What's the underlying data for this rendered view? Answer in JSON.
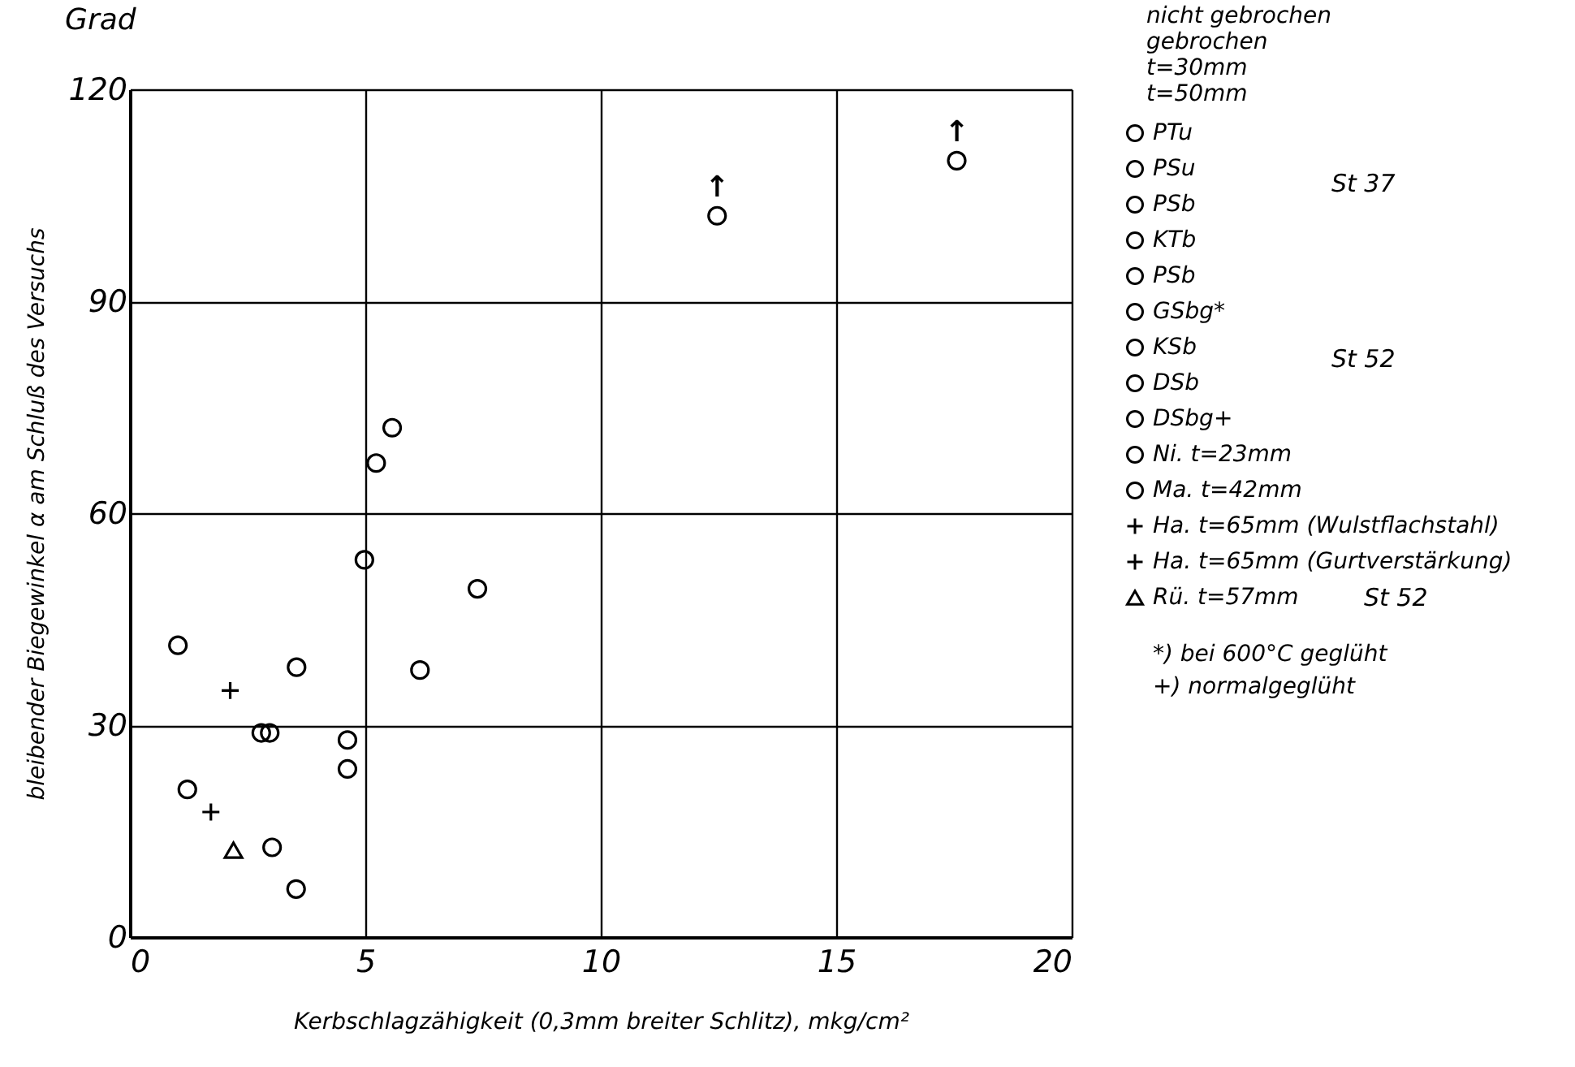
{
  "chart_data": {
    "type": "scatter",
    "xlabel": "Kerbschlagzähigkeit (0,3mm breiter Schlitz), mkg/cm²",
    "ylabel": "bleibender Biegewinkel α am Schluß des Versuchs",
    "xlim": [
      0,
      20
    ],
    "xticks": [
      0,
      5,
      10,
      15,
      20
    ],
    "ylim": [
      0,
      120
    ],
    "yticks": [
      0,
      30,
      60,
      90,
      120
    ],
    "grid": true,
    "legend": "right",
    "series": [
      {
        "name": "PTu",
        "color": "#000000",
        "marker": "circle",
        "x": [
          1.02,
          1.22,
          2.79
        ],
        "values": [
          41.3,
          20.9,
          28.9
        ]
      },
      {
        "name": "PSu",
        "color": "#000000",
        "marker": "circle",
        "x": [
          5.57
        ],
        "values": [
          72.1
        ]
      },
      {
        "name": "PSb",
        "color": "#000000",
        "marker": "circle",
        "x": [
          4.98
        ],
        "values": [
          53.4
        ]
      },
      {
        "name": "KTb",
        "color": "#000000",
        "marker": "circle",
        "x": [
          3.54,
          4.62
        ],
        "values": [
          38.2,
          23.8
        ]
      },
      {
        "name": "PSb",
        "color": "#000000",
        "marker": "circle",
        "x": [
          5.23,
          4.62
        ],
        "values": [
          67.1,
          27.9
        ]
      },
      {
        "name": "GSbg*",
        "color": "#000000",
        "marker": "circle",
        "x": [
          12.47
        ],
        "values": [
          102.1
        ]
      },
      {
        "name": "KSb",
        "color": "#000000",
        "marker": "circle",
        "x": [
          6.16,
          7.38
        ],
        "values": [
          37.8,
          49.3
        ]
      },
      {
        "name": "DSb",
        "color": "#000000",
        "marker": "circle",
        "x": [
          3.53
        ],
        "values": [
          6.8
        ]
      },
      {
        "name": "DSbg+",
        "color": "#000000",
        "marker": "circle",
        "x": [
          17.56
        ],
        "values": [
          109.9
        ]
      },
      {
        "name": "Ni.  t=23mm",
        "color": "#000000",
        "marker": "circle",
        "x": [
          2.97
        ],
        "values": [
          28.9
        ]
      },
      {
        "name": "Ma.  t=42mm",
        "color": "#000000",
        "marker": "circle",
        "x": [
          3.02
        ],
        "values": [
          12.7
        ]
      },
      {
        "name": "Ha.  t=65mm (Wulstflachstahl)",
        "color": "#000000",
        "marker": "cross",
        "x": [
          1.72
        ],
        "values": [
          17.7
        ]
      },
      {
        "name": "Ha.  t=65mm (Gurtverstärkung)",
        "color": "#000000",
        "marker": "cross",
        "x": [
          2.13
        ],
        "values": [
          34.9
        ]
      },
      {
        "name": "Rü.  t=57mm",
        "color": "#000000",
        "marker": "triangle",
        "x": [
          2.2
        ],
        "values": [
          12.3
        ]
      }
    ],
    "annotations": [
      "Grad",
      "nicht gebrochen",
      "gebrochen",
      "t=30mm",
      "t=50mm",
      "St 37",
      "St 52",
      "St 52",
      "*) bei 600°C geglüht",
      "+) normalgeglüht",
      {
        "text": "↑",
        "x": 12.47,
        "y": 102.1
      },
      {
        "text": "↑",
        "x": 17.56,
        "y": 109.9
      }
    ]
  }
}
